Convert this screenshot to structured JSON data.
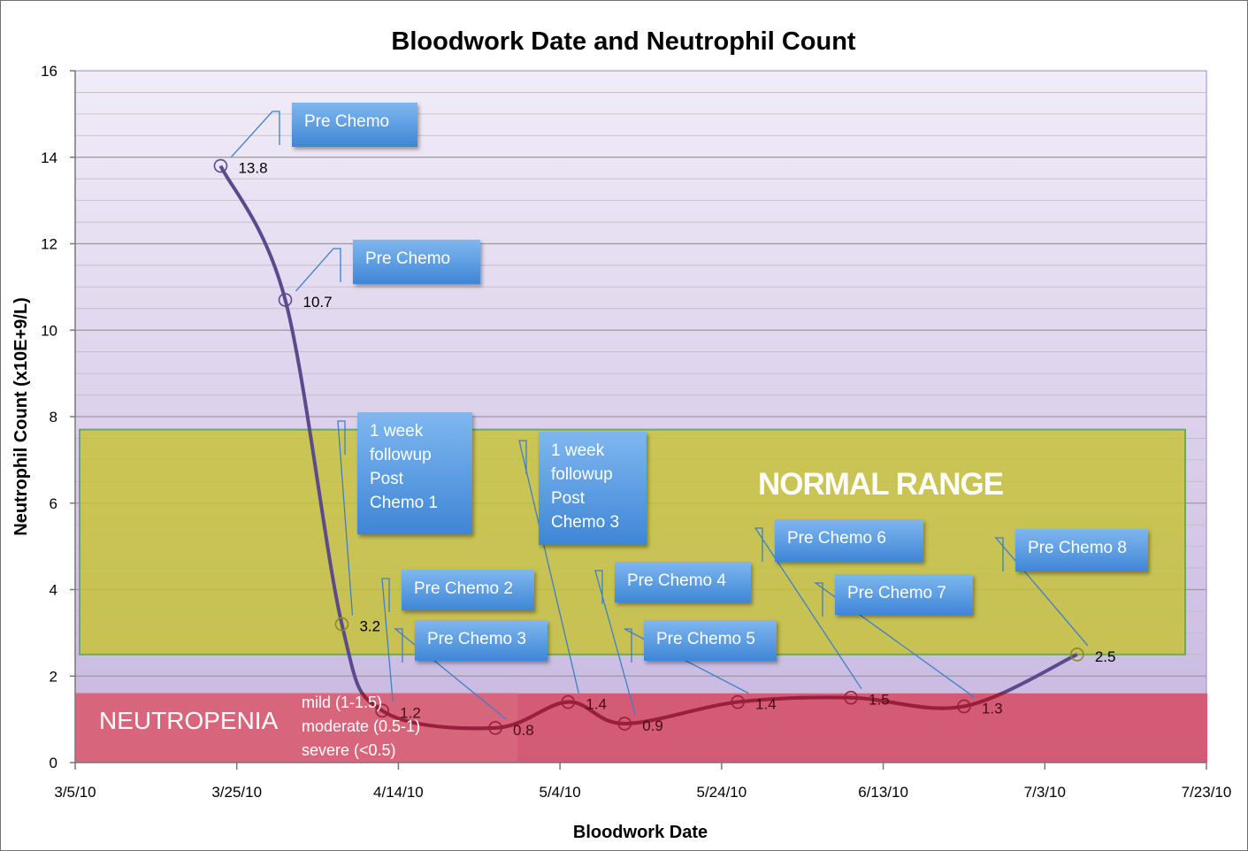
{
  "chart_data": {
    "type": "line",
    "title": "Bloodwork Date and Neutrophil Count",
    "xlabel": "Bloodwork Date",
    "ylabel": "Neutrophil Count (x10E+9/L)",
    "x_ticks": [
      "3/5/10",
      "3/25/10",
      "4/14/10",
      "5/4/10",
      "5/24/10",
      "6/13/10",
      "7/3/10",
      "7/23/10"
    ],
    "y_ticks": [
      "0",
      "2",
      "4",
      "6",
      "8",
      "10",
      "12",
      "14",
      "16"
    ],
    "xlim": [
      "2010-03-05",
      "2010-07-23"
    ],
    "ylim": [
      0,
      16
    ],
    "grid": true,
    "series": [
      {
        "points": [
          {
            "date": "2010-03-23",
            "value": 13.8,
            "label": "13.8"
          },
          {
            "date": "2010-03-31",
            "value": 10.7,
            "label": "10.7"
          },
          {
            "date": "2010-04-07",
            "value": 3.2,
            "label": "3.2"
          },
          {
            "date": "2010-04-12",
            "value": 1.2,
            "label": "1.2"
          },
          {
            "date": "2010-04-26",
            "value": 0.8,
            "label": "0.8"
          },
          {
            "date": "2010-05-05",
            "value": 1.4,
            "label": "1.4"
          },
          {
            "date": "2010-05-12",
            "value": 0.9,
            "label": "0.9"
          },
          {
            "date": "2010-05-26",
            "value": 1.4,
            "label": "1.4"
          },
          {
            "date": "2010-06-09",
            "value": 1.5,
            "label": "1.5"
          },
          {
            "date": "2010-06-23",
            "value": 1.3,
            "label": "1.3"
          },
          {
            "date": "2010-07-07",
            "value": 2.5,
            "label": "2.5"
          }
        ]
      }
    ],
    "bands": [
      {
        "label": "NORMAL RANGE",
        "from": 2.5,
        "to": 7.7
      },
      {
        "label": "NEUTROPENIA",
        "from": 0,
        "to": 1.6,
        "notes": [
          "mild (1-1.5)",
          "moderate (0.5-1)",
          "severe (<0.5)"
        ]
      }
    ],
    "annotations": [
      {
        "text": "Pre Chemo",
        "for_point": 0
      },
      {
        "text": "Pre Chemo",
        "for_point": 1
      },
      {
        "text": "1 week\nfollowup\nPost\nChemo 1",
        "for_point": 2
      },
      {
        "text": "Pre Chemo 2",
        "for_point": 3
      },
      {
        "text": "Pre Chemo 3",
        "for_point": 4
      },
      {
        "text": "1 week\nfollowup\nPost\nChemo 3",
        "for_point": 5
      },
      {
        "text": "Pre Chemo 4",
        "for_point": 6
      },
      {
        "text": "Pre Chemo 5",
        "for_point": 7
      },
      {
        "text": "Pre Chemo 6",
        "for_point": 8
      },
      {
        "text": "Pre Chemo 7",
        "for_point": 9
      },
      {
        "text": "Pre Chemo 8",
        "for_point": 10
      }
    ],
    "colors": {
      "line": "#5b4a8c",
      "plot_background": "#e3dbf0",
      "normal_band": "#c6c233",
      "neutropenia_band": "#d4536b",
      "callout": "#4a90e2"
    }
  }
}
